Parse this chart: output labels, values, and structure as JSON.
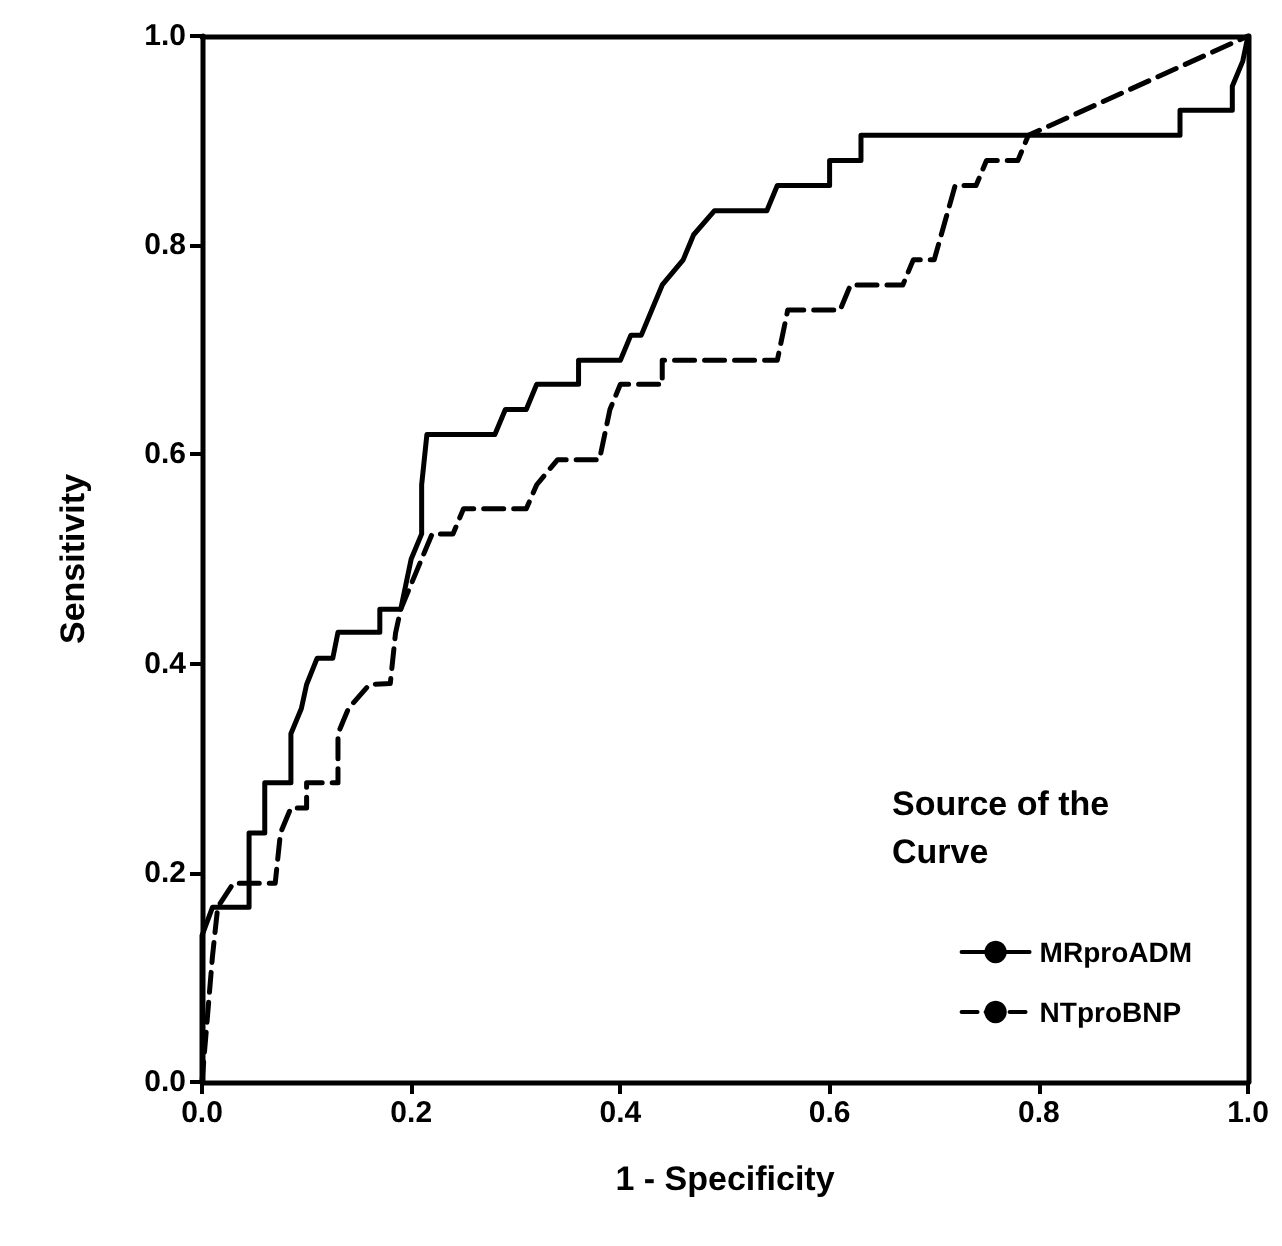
{
  "chart_data": {
    "type": "line",
    "xlabel": "1 - Specificity",
    "ylabel": "Sensitivity",
    "legend_title": "Source of the Curve",
    "legend": "bottom right",
    "grid": false,
    "marker": "none",
    "xlim": [
      0,
      1
    ],
    "ylim": [
      0,
      1
    ],
    "xticks": [
      {
        "value": 0,
        "label": "0.0"
      },
      {
        "value": 0.2,
        "label": "0.2"
      },
      {
        "value": 0.4,
        "label": "0.4"
      },
      {
        "value": 0.6,
        "label": "0.6"
      },
      {
        "value": 0.8,
        "label": "0.8"
      },
      {
        "value": 1,
        "label": "1.0"
      }
    ],
    "yticks": [
      {
        "value": 0,
        "label": "0.0"
      },
      {
        "value": 0.2,
        "label": "0.2"
      },
      {
        "value": 0.4,
        "label": "0.4"
      },
      {
        "value": 0.6,
        "label": "0.6"
      },
      {
        "value": 0.8,
        "label": "0.8"
      },
      {
        "value": 1,
        "label": "1.0"
      }
    ],
    "series": [
      {
        "name": "MRproADM",
        "color": "#000000",
        "line_style": "solid",
        "x": [
          0,
          0,
          0.01,
          0.045,
          0.045,
          0.06,
          0.06,
          0.085,
          0.085,
          0.095,
          0.1,
          0.11,
          0.125,
          0.13,
          0.17,
          0.17,
          0.19,
          0.195,
          0.2,
          0.21,
          0.21,
          0.215,
          0.28,
          0.29,
          0.31,
          0.32,
          0.36,
          0.36,
          0.4,
          0.41,
          0.42,
          0.43,
          0.44,
          0.46,
          0.47,
          0.49,
          0.54,
          0.55,
          0.6,
          0.6,
          0.63,
          0.63,
          0.935,
          0.935,
          0.985,
          0.985,
          0.995,
          1
        ],
        "values": [
          0,
          0.14,
          0.167,
          0.167,
          0.238,
          0.238,
          0.286,
          0.286,
          0.333,
          0.357,
          0.38,
          0.405,
          0.405,
          0.43,
          0.43,
          0.452,
          0.452,
          0.476,
          0.5,
          0.524,
          0.571,
          0.619,
          0.619,
          0.643,
          0.643,
          0.667,
          0.667,
          0.69,
          0.69,
          0.714,
          0.714,
          0.738,
          0.762,
          0.786,
          0.81,
          0.833,
          0.833,
          0.857,
          0.857,
          0.881,
          0.881,
          0.905,
          0.905,
          0.929,
          0.929,
          0.952,
          0.976,
          1
        ]
      },
      {
        "name": "NTproBNP",
        "color": "#000000",
        "line_style": "dashed",
        "x": [
          0,
          0.01,
          0.015,
          0.03,
          0.07,
          0.075,
          0.085,
          0.1,
          0.1,
          0.13,
          0.13,
          0.14,
          0.16,
          0.18,
          0.185,
          0.19,
          0.2,
          0.21,
          0.22,
          0.24,
          0.25,
          0.31,
          0.32,
          0.34,
          0.38,
          0.39,
          0.4,
          0.44,
          0.44,
          0.55,
          0.56,
          0.61,
          0.62,
          0.67,
          0.68,
          0.7,
          0.72,
          0.74,
          0.75,
          0.78,
          0.79,
          1
        ],
        "values": [
          0,
          0.12,
          0.167,
          0.19,
          0.19,
          0.238,
          0.262,
          0.262,
          0.286,
          0.286,
          0.333,
          0.357,
          0.38,
          0.381,
          0.429,
          0.452,
          0.476,
          0.5,
          0.524,
          0.524,
          0.548,
          0.548,
          0.571,
          0.595,
          0.595,
          0.643,
          0.667,
          0.667,
          0.69,
          0.69,
          0.738,
          0.738,
          0.762,
          0.762,
          0.786,
          0.786,
          0.857,
          0.857,
          0.881,
          0.881,
          0.905,
          1
        ]
      }
    ]
  }
}
